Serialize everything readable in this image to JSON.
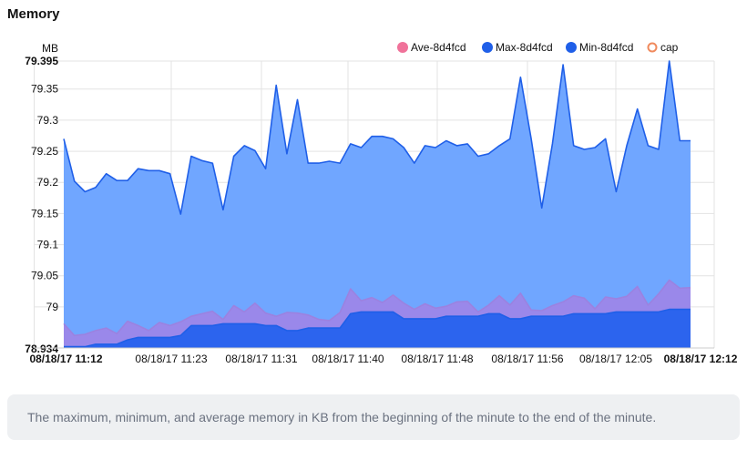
{
  "panel": {
    "title": "Memory",
    "description": "The maximum, minimum, and average memory in KB from the beginning of the minute to the end of the minute."
  },
  "chart_data": {
    "type": "area",
    "title": "Memory",
    "ylabel": "MB",
    "ylim": [
      78.934,
      79.395
    ],
    "y_ticks": [
      "79.35",
      "79.3",
      "79.25",
      "79.2",
      "79.15",
      "79.1",
      "79.05",
      "79"
    ],
    "y_min_label": "78.934",
    "y_max_label": "79.395",
    "x_tick_labels": [
      "08/18/17 11:12",
      "08/18/17 11:23",
      "08/18/17 11:31",
      "08/18/17 11:40",
      "08/18/17 11:48",
      "08/18/17 11:56",
      "08/18/17 12:05",
      "08/18/17 12:12"
    ],
    "grid": true,
    "legend_position": "top-right",
    "legend": [
      {
        "name": "Ave-8d4fcd",
        "color": "#f0729a",
        "style": "filled"
      },
      {
        "name": "Max-8d4fcd",
        "color": "#1f5fe8",
        "style": "filled"
      },
      {
        "name": "Min-8d4fcd",
        "color": "#1f5fe8",
        "style": "filled"
      },
      {
        "name": "cap",
        "color": "#f08a5d",
        "style": "ring"
      }
    ],
    "series": [
      {
        "name": "Max-8d4fcd",
        "color": "#1f5fe8",
        "fill": "#70a6ff",
        "values": [
          79.27,
          79.202,
          79.185,
          79.192,
          79.214,
          79.203,
          79.203,
          79.222,
          79.219,
          79.219,
          79.214,
          79.149,
          79.242,
          79.235,
          79.231,
          79.156,
          79.242,
          79.259,
          79.251,
          79.222,
          79.356,
          79.246,
          79.333,
          79.231,
          79.231,
          79.234,
          79.231,
          79.262,
          79.256,
          79.274,
          79.274,
          79.27,
          79.256,
          79.231,
          79.259,
          79.256,
          79.267,
          79.259,
          79.262,
          79.242,
          79.246,
          79.259,
          79.27,
          79.369,
          79.27,
          79.159,
          79.262,
          79.389,
          79.259,
          79.253,
          79.256,
          79.27,
          79.185,
          79.259,
          79.318,
          79.259,
          79.253,
          79.395,
          79.267,
          79.267
        ]
      },
      {
        "name": "Ave-8d4fcd",
        "color": "#9b82e0",
        "fill": "#9a88ea",
        "values": [
          78.973,
          78.954,
          78.956,
          78.962,
          78.966,
          78.957,
          78.977,
          78.97,
          78.962,
          78.975,
          78.97,
          78.976,
          78.985,
          78.989,
          78.993,
          78.98,
          79.002,
          78.992,
          79.006,
          78.99,
          78.985,
          78.991,
          78.99,
          78.987,
          78.98,
          78.978,
          78.991,
          79.029,
          79.01,
          79.015,
          79.007,
          79.019,
          79.006,
          78.996,
          79.005,
          78.998,
          79.001,
          79.008,
          79.009,
          78.992,
          79.003,
          79.018,
          79.003,
          79.022,
          78.995,
          78.994,
          79.002,
          79.008,
          79.018,
          79.014,
          78.997,
          79.016,
          79.013,
          79.017,
          79.033,
          79.003,
          79.021,
          79.043,
          79.03,
          79.031
        ]
      },
      {
        "name": "Min-8d4fcd",
        "color": "#1f5fe8",
        "fill": "#2c64ee",
        "values": [
          78.936,
          78.936,
          78.936,
          78.94,
          78.94,
          78.94,
          78.947,
          78.951,
          78.951,
          78.951,
          78.951,
          78.954,
          78.97,
          78.97,
          78.97,
          78.973,
          78.973,
          78.973,
          78.973,
          78.97,
          78.97,
          78.962,
          78.962,
          78.966,
          78.966,
          78.966,
          78.966,
          78.989,
          78.992,
          78.992,
          78.992,
          78.992,
          78.981,
          78.981,
          78.981,
          78.981,
          78.985,
          78.985,
          78.985,
          78.985,
          78.989,
          78.989,
          78.981,
          78.981,
          78.985,
          78.985,
          78.985,
          78.985,
          78.989,
          78.989,
          78.989,
          78.989,
          78.992,
          78.992,
          78.992,
          78.992,
          78.992,
          78.996,
          78.996,
          78.996
        ]
      }
    ]
  }
}
